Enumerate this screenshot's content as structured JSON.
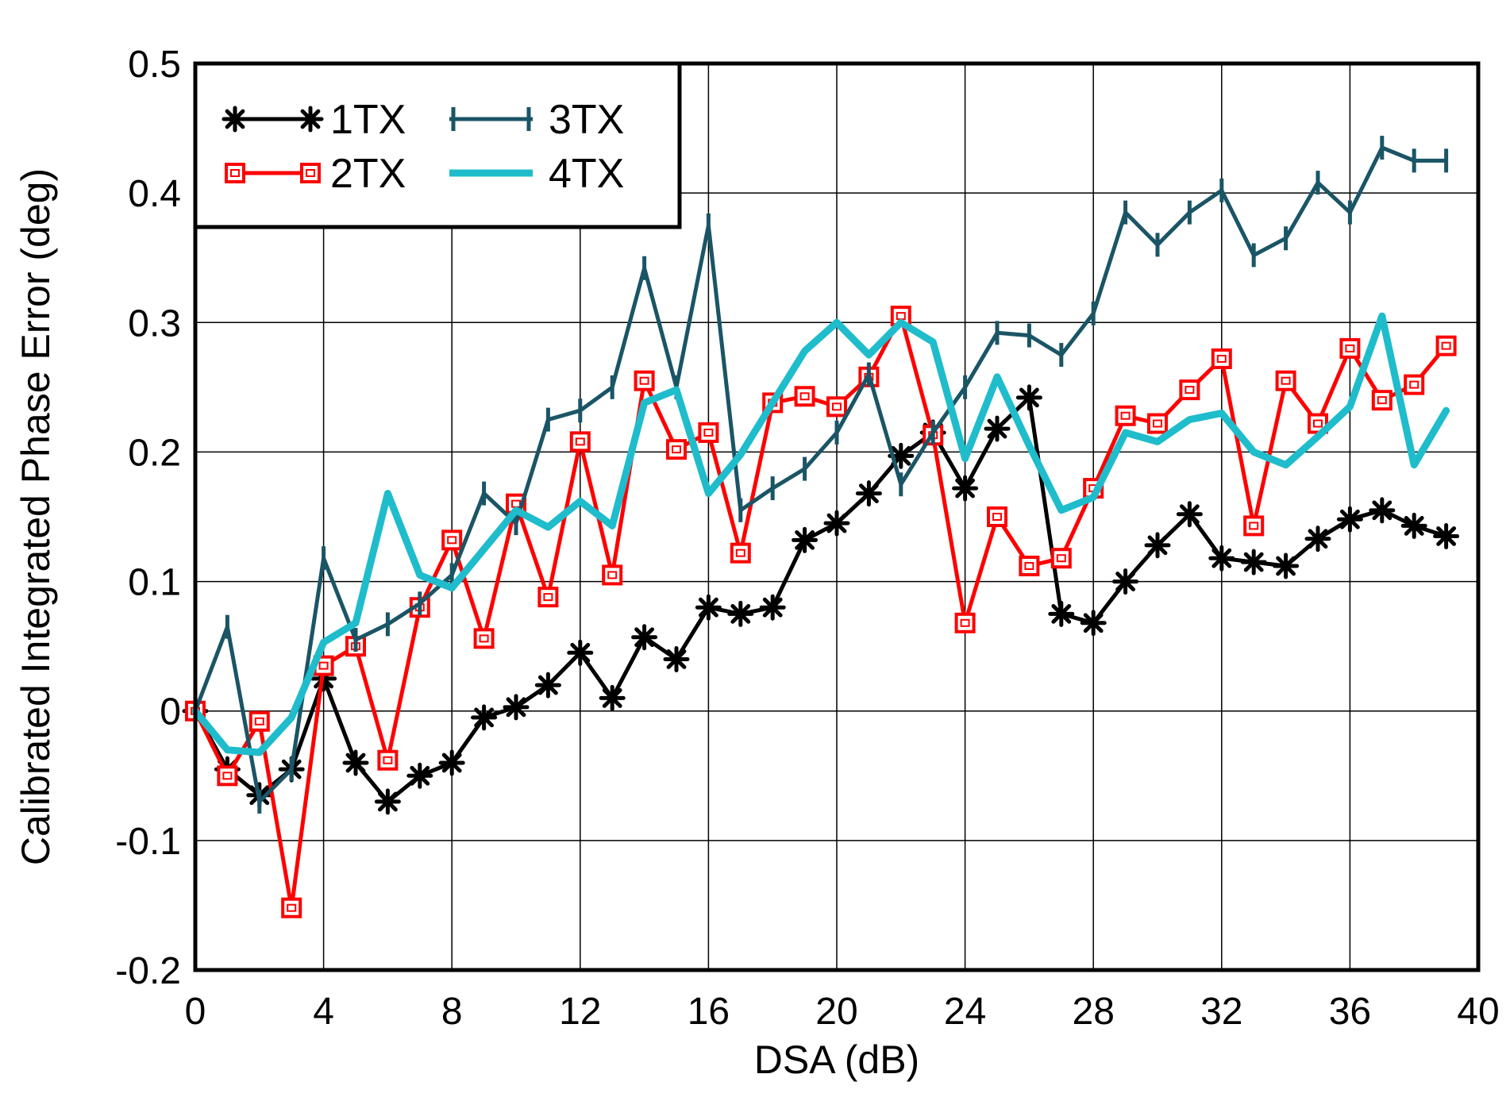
{
  "chart_data": {
    "type": "line",
    "title": "",
    "xlabel": "DSA (dB)",
    "ylabel": "Calibrated Integrated Phase Error (deg)",
    "xlim": [
      0,
      40
    ],
    "ylim": [
      -0.2,
      0.5
    ],
    "xticks": [
      0,
      4,
      8,
      12,
      16,
      20,
      24,
      28,
      32,
      36,
      40
    ],
    "yticks": [
      -0.2,
      -0.1,
      0,
      0.1,
      0.2,
      0.3,
      0.4,
      0.5
    ],
    "xtick_labels": [
      "0",
      "4",
      "8",
      "12",
      "16",
      "20",
      "24",
      "28",
      "32",
      "36",
      "40"
    ],
    "ytick_labels": [
      "-0.2",
      "-0.1",
      "0",
      "0.1",
      "0.2",
      "0.3",
      "0.4",
      "0.5"
    ],
    "grid": true,
    "legend_position": "top-left",
    "x": [
      0,
      1,
      2,
      3,
      4,
      5,
      6,
      7,
      8,
      9,
      10,
      11,
      12,
      13,
      14,
      15,
      16,
      17,
      18,
      19,
      20,
      21,
      22,
      23,
      24,
      25,
      26,
      27,
      28,
      29,
      30,
      31,
      32,
      33,
      34,
      35,
      36,
      37,
      38,
      39
    ],
    "series": [
      {
        "name": "1TX",
        "color": "#000000",
        "marker": "asterisk",
        "values": [
          0,
          -0.045,
          -0.065,
          -0.045,
          0.025,
          -0.04,
          -0.07,
          -0.05,
          -0.04,
          -0.005,
          0.003,
          0.02,
          0.045,
          0.01,
          0.057,
          0.04,
          0.08,
          0.075,
          0.08,
          0.132,
          0.145,
          0.168,
          0.197,
          0.215,
          0.172,
          0.218,
          0.242,
          0.075,
          0.068,
          0.1,
          0.128,
          0.152,
          0.118,
          0.115,
          0.112,
          0.133,
          0.148,
          0.155,
          0.143,
          0.135
        ]
      },
      {
        "name": "2TX",
        "color": "#ff0000",
        "marker": "square",
        "values": [
          0,
          -0.05,
          -0.008,
          -0.152,
          0.035,
          0.05,
          -0.038,
          0.08,
          0.132,
          0.056,
          0.16,
          0.088,
          0.208,
          0.105,
          0.255,
          0.202,
          0.215,
          0.122,
          0.238,
          0.243,
          0.235,
          0.258,
          0.305,
          0.213,
          0.068,
          0.15,
          0.112,
          0.118,
          0.172,
          0.228,
          0.222,
          0.248,
          0.272,
          0.143,
          0.255,
          0.222,
          0.28,
          0.24,
          0.252,
          0.282
        ]
      },
      {
        "name": "3TX",
        "color": "#1a5566",
        "marker": "vtick",
        "values": [
          0,
          0.065,
          -0.07,
          -0.045,
          0.118,
          0.055,
          0.067,
          0.083,
          0.105,
          0.168,
          0.145,
          0.225,
          0.232,
          0.25,
          0.342,
          0.25,
          0.375,
          0.155,
          0.172,
          0.187,
          0.215,
          0.26,
          0.175,
          0.215,
          0.25,
          0.292,
          0.29,
          0.275,
          0.307,
          0.385,
          0.36,
          0.385,
          0.402,
          0.352,
          0.365,
          0.408,
          0.385,
          0.435,
          0.425,
          0.425
        ]
      },
      {
        "name": "4TX",
        "color": "#1fbccc",
        "marker": "none",
        "values": [
          0,
          -0.03,
          -0.032,
          -0.005,
          0.053,
          0.068,
          0.168,
          0.105,
          0.095,
          0.125,
          0.155,
          0.142,
          0.162,
          0.143,
          0.238,
          0.248,
          0.168,
          0.198,
          0.238,
          0.278,
          0.3,
          0.275,
          0.3,
          0.285,
          0.195,
          0.258,
          0.205,
          0.155,
          0.165,
          0.215,
          0.208,
          0.225,
          0.23,
          0.2,
          0.19,
          0.212,
          0.235,
          0.305,
          0.19,
          0.232
        ]
      }
    ]
  }
}
